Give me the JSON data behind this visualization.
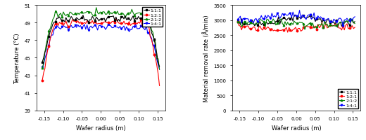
{
  "left_chart": {
    "xlabel": "Wafer radius (m)",
    "ylabel": "Temperature (°C)",
    "xlim": [
      -0.17,
      0.17
    ],
    "ylim": [
      39,
      51
    ],
    "xticks": [
      -0.15,
      -0.1,
      -0.05,
      0.0,
      0.05,
      0.1,
      0.15
    ],
    "yticks": [
      39,
      40,
      41,
      42,
      43,
      44,
      45,
      46,
      47,
      48,
      49,
      50,
      51
    ],
    "legend_labels": [
      "1:1:1",
      "1:2:1",
      "2:1:2",
      "1:4:1"
    ],
    "colors": [
      "black",
      "red",
      "green",
      "blue"
    ],
    "markers": [
      "s",
      "o",
      "^",
      "v"
    ],
    "temp_bases": [
      49.5,
      49.0,
      50.1,
      48.5
    ],
    "edge_drop": [
      5.0,
      6.5,
      6.0,
      4.5
    ]
  },
  "right_chart": {
    "xlabel": "Wafer radius (m)",
    "ylabel": "Material removal rate (Å/min)",
    "xlim": [
      -0.17,
      0.17
    ],
    "ylim": [
      0,
      3500
    ],
    "xticks": [
      -0.15,
      -0.1,
      -0.05,
      0.0,
      0.05,
      0.1,
      0.15
    ],
    "yticks": [
      0,
      500,
      1000,
      1500,
      2000,
      2500,
      3000,
      3500
    ],
    "legend_labels": [
      "1:1:1",
      "1:2:1",
      "2:1:2",
      "1:4:1"
    ],
    "colors": [
      "black",
      "red",
      "green",
      "blue"
    ],
    "markers": [
      "s",
      "o",
      "^",
      "v"
    ],
    "mrr_bases": [
      2950,
      2700,
      2850,
      3050
    ]
  }
}
